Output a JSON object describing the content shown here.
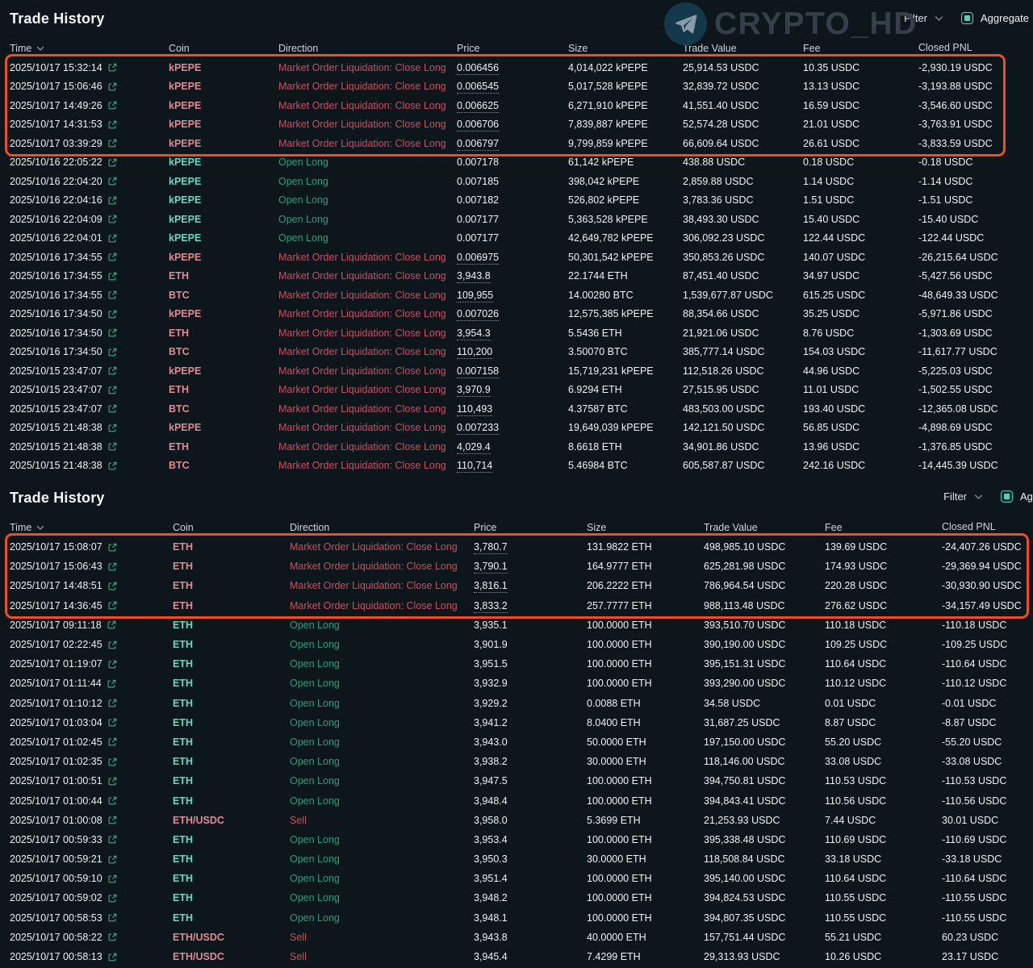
{
  "watermark": {
    "text": "CRYPTO_HD",
    "icon": "telegram-icon"
  },
  "colors": {
    "background": "#0d161b",
    "text": "#f1f5f5",
    "accent": "#50d2c1",
    "side_buy": "#2e9b80",
    "side_sell": "#cb4e60",
    "coin_buy": "#68d8c4",
    "coin_sell": "#e08a96",
    "link_icon": "#3fa98f",
    "highlight_border": "#ef4e27"
  },
  "tables": [
    {
      "title": "Trade History",
      "filter_label": "Filter",
      "aggregate_label": "Aggregate",
      "aggregate_checked": true,
      "columns": [
        "Time",
        "Coin",
        "Direction",
        "Price",
        "Size",
        "Trade Value",
        "Fee",
        "Closed PNL"
      ],
      "highlight_rows": 5,
      "rows": [
        {
          "time": "2025/10/17 15:32:14",
          "coin": "kPEPE",
          "direction": "Market Order Liquidation: Close Long",
          "side": "sell",
          "price": "0.006456",
          "size": "4,014,022 kPEPE",
          "trade_value": "25,914.53 USDC",
          "fee": "10.35 USDC",
          "closed_pnl": "-2,930.19 USDC"
        },
        {
          "time": "2025/10/17 15:06:46",
          "coin": "kPEPE",
          "direction": "Market Order Liquidation: Close Long",
          "side": "sell",
          "price": "0.006545",
          "size": "5,017,528 kPEPE",
          "trade_value": "32,839.72 USDC",
          "fee": "13.13 USDC",
          "closed_pnl": "-3,193.88 USDC"
        },
        {
          "time": "2025/10/17 14:49:26",
          "coin": "kPEPE",
          "direction": "Market Order Liquidation: Close Long",
          "side": "sell",
          "price": "0.006625",
          "size": "6,271,910 kPEPE",
          "trade_value": "41,551.40 USDC",
          "fee": "16.59 USDC",
          "closed_pnl": "-3,546.60 USDC"
        },
        {
          "time": "2025/10/17 14:31:53",
          "coin": "kPEPE",
          "direction": "Market Order Liquidation: Close Long",
          "side": "sell",
          "price": "0.006706",
          "size": "7,839,887 kPEPE",
          "trade_value": "52,574.28 USDC",
          "fee": "21.01 USDC",
          "closed_pnl": "-3,763.91 USDC"
        },
        {
          "time": "2025/10/17 03:39:29",
          "coin": "kPEPE",
          "direction": "Market Order Liquidation: Close Long",
          "side": "sell",
          "price": "0.006797",
          "size": "9,799,859 kPEPE",
          "trade_value": "66,609.64 USDC",
          "fee": "26.61 USDC",
          "closed_pnl": "-3,833.59 USDC"
        },
        {
          "time": "2025/10/16 22:05:22",
          "coin": "kPEPE",
          "direction": "Open Long",
          "side": "buy",
          "price": "0.007178",
          "size": "61,142 kPEPE",
          "trade_value": "438.88 USDC",
          "fee": "0.18 USDC",
          "closed_pnl": "-0.18 USDC"
        },
        {
          "time": "2025/10/16 22:04:20",
          "coin": "kPEPE",
          "direction": "Open Long",
          "side": "buy",
          "price": "0.007185",
          "size": "398,042 kPEPE",
          "trade_value": "2,859.88 USDC",
          "fee": "1.14 USDC",
          "closed_pnl": "-1.14 USDC"
        },
        {
          "time": "2025/10/16 22:04:16",
          "coin": "kPEPE",
          "direction": "Open Long",
          "side": "buy",
          "price": "0.007182",
          "size": "526,802 kPEPE",
          "trade_value": "3,783.36 USDC",
          "fee": "1.51 USDC",
          "closed_pnl": "-1.51 USDC"
        },
        {
          "time": "2025/10/16 22:04:09",
          "coin": "kPEPE",
          "direction": "Open Long",
          "side": "buy",
          "price": "0.007177",
          "size": "5,363,528 kPEPE",
          "trade_value": "38,493.30 USDC",
          "fee": "15.40 USDC",
          "closed_pnl": "-15.40 USDC"
        },
        {
          "time": "2025/10/16 22:04:01",
          "coin": "kPEPE",
          "direction": "Open Long",
          "side": "buy",
          "price": "0.007177",
          "size": "42,649,782 kPEPE",
          "trade_value": "306,092.23 USDC",
          "fee": "122.44 USDC",
          "closed_pnl": "-122.44 USDC"
        },
        {
          "time": "2025/10/16 17:34:55",
          "coin": "kPEPE",
          "direction": "Market Order Liquidation: Close Long",
          "side": "sell",
          "price": "0.006975",
          "size": "50,301,542 kPEPE",
          "trade_value": "350,853.26 USDC",
          "fee": "140.07 USDC",
          "closed_pnl": "-26,215.64 USDC"
        },
        {
          "time": "2025/10/16 17:34:55",
          "coin": "ETH",
          "direction": "Market Order Liquidation: Close Long",
          "side": "sell",
          "price": "3,943.8",
          "size": "22.1744 ETH",
          "trade_value": "87,451.40 USDC",
          "fee": "34.97 USDC",
          "closed_pnl": "-5,427.56 USDC"
        },
        {
          "time": "2025/10/16 17:34:55",
          "coin": "BTC",
          "direction": "Market Order Liquidation: Close Long",
          "side": "sell",
          "price": "109,955",
          "size": "14.00280 BTC",
          "trade_value": "1,539,677.87 USDC",
          "fee": "615.25 USDC",
          "closed_pnl": "-48,649.33 USDC"
        },
        {
          "time": "2025/10/16 17:34:50",
          "coin": "kPEPE",
          "direction": "Market Order Liquidation: Close Long",
          "side": "sell",
          "price": "0.007026",
          "size": "12,575,385 kPEPE",
          "trade_value": "88,354.66 USDC",
          "fee": "35.25 USDC",
          "closed_pnl": "-5,971.86 USDC"
        },
        {
          "time": "2025/10/16 17:34:50",
          "coin": "ETH",
          "direction": "Market Order Liquidation: Close Long",
          "side": "sell",
          "price": "3,954.3",
          "size": "5.5436 ETH",
          "trade_value": "21,921.06 USDC",
          "fee": "8.76 USDC",
          "closed_pnl": "-1,303.69 USDC"
        },
        {
          "time": "2025/10/16 17:34:50",
          "coin": "BTC",
          "direction": "Market Order Liquidation: Close Long",
          "side": "sell",
          "price": "110,200",
          "size": "3.50070 BTC",
          "trade_value": "385,777.14 USDC",
          "fee": "154.03 USDC",
          "closed_pnl": "-11,617.77 USDC"
        },
        {
          "time": "2025/10/15 23:47:07",
          "coin": "kPEPE",
          "direction": "Market Order Liquidation: Close Long",
          "side": "sell",
          "price": "0.007158",
          "size": "15,719,231 kPEPE",
          "trade_value": "112,518.26 USDC",
          "fee": "44.96 USDC",
          "closed_pnl": "-5,225.03 USDC"
        },
        {
          "time": "2025/10/15 23:47:07",
          "coin": "ETH",
          "direction": "Market Order Liquidation: Close Long",
          "side": "sell",
          "price": "3,970.9",
          "size": "6.9294 ETH",
          "trade_value": "27,515.95 USDC",
          "fee": "11.01 USDC",
          "closed_pnl": "-1,502.55 USDC"
        },
        {
          "time": "2025/10/15 23:47:07",
          "coin": "BTC",
          "direction": "Market Order Liquidation: Close Long",
          "side": "sell",
          "price": "110,493",
          "size": "4.37587 BTC",
          "trade_value": "483,503.00 USDC",
          "fee": "193.40 USDC",
          "closed_pnl": "-12,365.08 USDC"
        },
        {
          "time": "2025/10/15 21:48:38",
          "coin": "kPEPE",
          "direction": "Market Order Liquidation: Close Long",
          "side": "sell",
          "price": "0.007233",
          "size": "19,649,039 kPEPE",
          "trade_value": "142,121.50 USDC",
          "fee": "56.85 USDC",
          "closed_pnl": "-4,898.69 USDC"
        },
        {
          "time": "2025/10/15 21:48:38",
          "coin": "ETH",
          "direction": "Market Order Liquidation: Close Long",
          "side": "sell",
          "price": "4,029.4",
          "size": "8.6618 ETH",
          "trade_value": "34,901.86 USDC",
          "fee": "13.96 USDC",
          "closed_pnl": "-1,376.85 USDC"
        },
        {
          "time": "2025/10/15 21:48:38",
          "coin": "BTC",
          "direction": "Market Order Liquidation: Close Long",
          "side": "sell",
          "price": "110,714",
          "size": "5.46984 BTC",
          "trade_value": "605,587.87 USDC",
          "fee": "242.16 USDC",
          "closed_pnl": "-14,445.39 USDC"
        }
      ]
    },
    {
      "title": "Trade History",
      "filter_label": "Filter",
      "aggregate_label": "Aggregate",
      "aggregate_checked": true,
      "columns": [
        "Time",
        "Coin",
        "Direction",
        "Price",
        "Size",
        "Trade Value",
        "Fee",
        "Closed PNL"
      ],
      "highlight_rows": 4,
      "rows": [
        {
          "time": "2025/10/17 15:08:07",
          "coin": "ETH",
          "direction": "Market Order Liquidation: Close Long",
          "side": "sell",
          "price": "3,780.7",
          "size": "131.9822 ETH",
          "trade_value": "498,985.10 USDC",
          "fee": "139.69 USDC",
          "closed_pnl": "-24,407.26 USDC"
        },
        {
          "time": "2025/10/17 15:06:43",
          "coin": "ETH",
          "direction": "Market Order Liquidation: Close Long",
          "side": "sell",
          "price": "3,790.1",
          "size": "164.9777 ETH",
          "trade_value": "625,281.98 USDC",
          "fee": "174.93 USDC",
          "closed_pnl": "-29,369.94 USDC"
        },
        {
          "time": "2025/10/17 14:48:51",
          "coin": "ETH",
          "direction": "Market Order Liquidation: Close Long",
          "side": "sell",
          "price": "3,816.1",
          "size": "206.2222 ETH",
          "trade_value": "786,964.54 USDC",
          "fee": "220.28 USDC",
          "closed_pnl": "-30,930.90 USDC"
        },
        {
          "time": "2025/10/17 14:36:45",
          "coin": "ETH",
          "direction": "Market Order Liquidation: Close Long",
          "side": "sell",
          "price": "3,833.2",
          "size": "257.7777 ETH",
          "trade_value": "988,113.48 USDC",
          "fee": "276.62 USDC",
          "closed_pnl": "-34,157.49 USDC"
        },
        {
          "time": "2025/10/17 09:11:18",
          "coin": "ETH",
          "direction": "Open Long",
          "side": "buy",
          "price": "3,935.1",
          "size": "100.0000 ETH",
          "trade_value": "393,510.70 USDC",
          "fee": "110.18 USDC",
          "closed_pnl": "-110.18 USDC"
        },
        {
          "time": "2025/10/17 02:22:45",
          "coin": "ETH",
          "direction": "Open Long",
          "side": "buy",
          "price": "3,901.9",
          "size": "100.0000 ETH",
          "trade_value": "390,190.00 USDC",
          "fee": "109.25 USDC",
          "closed_pnl": "-109.25 USDC"
        },
        {
          "time": "2025/10/17 01:19:07",
          "coin": "ETH",
          "direction": "Open Long",
          "side": "buy",
          "price": "3,951.5",
          "size": "100.0000 ETH",
          "trade_value": "395,151.31 USDC",
          "fee": "110.64 USDC",
          "closed_pnl": "-110.64 USDC"
        },
        {
          "time": "2025/10/17 01:11:44",
          "coin": "ETH",
          "direction": "Open Long",
          "side": "buy",
          "price": "3,932.9",
          "size": "100.0000 ETH",
          "trade_value": "393,290.00 USDC",
          "fee": "110.12 USDC",
          "closed_pnl": "-110.12 USDC"
        },
        {
          "time": "2025/10/17 01:10:12",
          "coin": "ETH",
          "direction": "Open Long",
          "side": "buy",
          "price": "3,929.2",
          "size": "0.0088 ETH",
          "trade_value": "34.58 USDC",
          "fee": "0.01 USDC",
          "closed_pnl": "-0.01 USDC"
        },
        {
          "time": "2025/10/17 01:03:04",
          "coin": "ETH",
          "direction": "Open Long",
          "side": "buy",
          "price": "3,941.2",
          "size": "8.0400 ETH",
          "trade_value": "31,687.25 USDC",
          "fee": "8.87 USDC",
          "closed_pnl": "-8.87 USDC"
        },
        {
          "time": "2025/10/17 01:02:45",
          "coin": "ETH",
          "direction": "Open Long",
          "side": "buy",
          "price": "3,943.0",
          "size": "50.0000 ETH",
          "trade_value": "197,150.00 USDC",
          "fee": "55.20 USDC",
          "closed_pnl": "-55.20 USDC"
        },
        {
          "time": "2025/10/17 01:02:35",
          "coin": "ETH",
          "direction": "Open Long",
          "side": "buy",
          "price": "3,938.2",
          "size": "30.0000 ETH",
          "trade_value": "118,146.00 USDC",
          "fee": "33.08 USDC",
          "closed_pnl": "-33.08 USDC"
        },
        {
          "time": "2025/10/17 01:00:51",
          "coin": "ETH",
          "direction": "Open Long",
          "side": "buy",
          "price": "3,947.5",
          "size": "100.0000 ETH",
          "trade_value": "394,750.81 USDC",
          "fee": "110.53 USDC",
          "closed_pnl": "-110.53 USDC"
        },
        {
          "time": "2025/10/17 01:00:44",
          "coin": "ETH",
          "direction": "Open Long",
          "side": "buy",
          "price": "3,948.4",
          "size": "100.0000 ETH",
          "trade_value": "394,843.41 USDC",
          "fee": "110.56 USDC",
          "closed_pnl": "-110.56 USDC"
        },
        {
          "time": "2025/10/17 01:00:08",
          "coin": "ETH/USDC",
          "direction": "Sell",
          "side": "sell",
          "price": "3,958.0",
          "size": "5.3699 ETH",
          "trade_value": "21,253.93 USDC",
          "fee": "7.44 USDC",
          "closed_pnl": "30.01 USDC"
        },
        {
          "time": "2025/10/17 00:59:33",
          "coin": "ETH",
          "direction": "Open Long",
          "side": "buy",
          "price": "3,953.4",
          "size": "100.0000 ETH",
          "trade_value": "395,338.48 USDC",
          "fee": "110.69 USDC",
          "closed_pnl": "-110.69 USDC"
        },
        {
          "time": "2025/10/17 00:59:21",
          "coin": "ETH",
          "direction": "Open Long",
          "side": "buy",
          "price": "3,950.3",
          "size": "30.0000 ETH",
          "trade_value": "118,508.84 USDC",
          "fee": "33.18 USDC",
          "closed_pnl": "-33.18 USDC"
        },
        {
          "time": "2025/10/17 00:59:10",
          "coin": "ETH",
          "direction": "Open Long",
          "side": "buy",
          "price": "3,951.4",
          "size": "100.0000 ETH",
          "trade_value": "395,140.00 USDC",
          "fee": "110.64 USDC",
          "closed_pnl": "-110.64 USDC"
        },
        {
          "time": "2025/10/17 00:59:02",
          "coin": "ETH",
          "direction": "Open Long",
          "side": "buy",
          "price": "3,948.2",
          "size": "100.0000 ETH",
          "trade_value": "394,824.53 USDC",
          "fee": "110.55 USDC",
          "closed_pnl": "-110.55 USDC"
        },
        {
          "time": "2025/10/17 00:58:53",
          "coin": "ETH",
          "direction": "Open Long",
          "side": "buy",
          "price": "3,948.1",
          "size": "100.0000 ETH",
          "trade_value": "394,807.35 USDC",
          "fee": "110.55 USDC",
          "closed_pnl": "-110.55 USDC"
        },
        {
          "time": "2025/10/17 00:58:22",
          "coin": "ETH/USDC",
          "direction": "Sell",
          "side": "sell",
          "price": "3,943.8",
          "size": "40.0000 ETH",
          "trade_value": "157,751.44 USDC",
          "fee": "55.21 USDC",
          "closed_pnl": "60.23 USDC"
        },
        {
          "time": "2025/10/17 00:58:13",
          "coin": "ETH/USDC",
          "direction": "Sell",
          "side": "sell",
          "price": "3,945.4",
          "size": "7.4299 ETH",
          "trade_value": "29,313.93 USDC",
          "fee": "10.26 USDC",
          "closed_pnl": "23.17 USDC"
        }
      ]
    }
  ]
}
